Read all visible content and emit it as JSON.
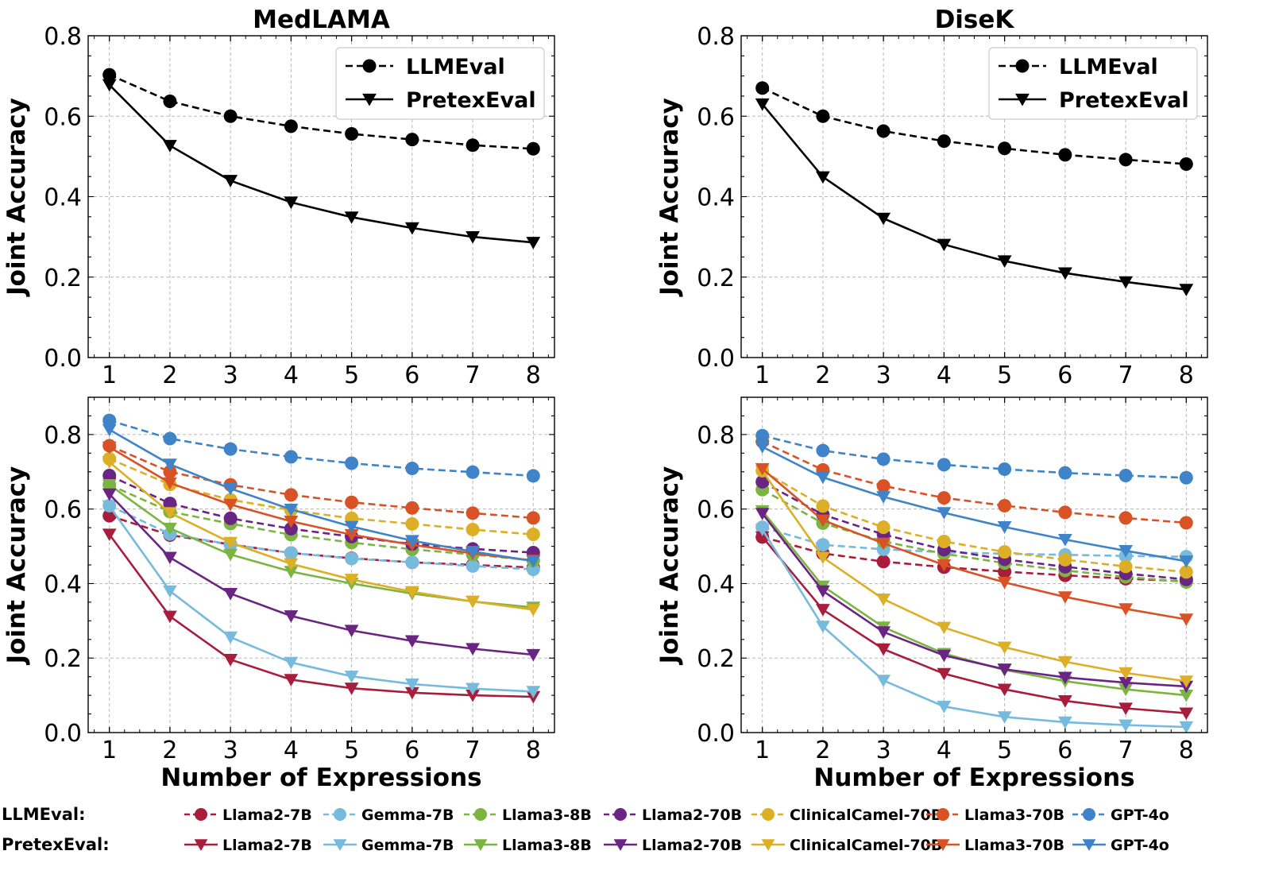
{
  "chart_data": [
    {
      "id": "medlama-top",
      "type": "line",
      "title": "MedLAMA",
      "xlabel": "",
      "ylabel": "Joint Accuracy",
      "x": [
        1,
        2,
        3,
        4,
        5,
        6,
        7,
        8
      ],
      "ylim": [
        0,
        0.8
      ],
      "yticks": [
        0.0,
        0.2,
        0.4,
        0.6,
        0.8
      ],
      "ytick_labels": [
        "0.0",
        "0.2",
        "0.4",
        "0.6",
        "0.8"
      ],
      "grid": true,
      "legend": {
        "position": "top-right",
        "entries": [
          "LLMEval",
          "PretexEval"
        ]
      },
      "series": [
        {
          "name": "LLMEval",
          "color": "#000000",
          "dashed": true,
          "marker": "circle",
          "values": [
            0.703,
            0.637,
            0.6,
            0.575,
            0.556,
            0.542,
            0.528,
            0.519
          ]
        },
        {
          "name": "PretexEval",
          "color": "#000000",
          "dashed": false,
          "marker": "triangle-down",
          "values": [
            0.678,
            0.527,
            0.44,
            0.386,
            0.349,
            0.322,
            0.3,
            0.286
          ]
        }
      ]
    },
    {
      "id": "disek-top",
      "type": "line",
      "title": "DiseK",
      "xlabel": "",
      "ylabel": "Joint Accuracy",
      "x": [
        1,
        2,
        3,
        4,
        5,
        6,
        7,
        8
      ],
      "ylim": [
        0,
        0.8
      ],
      "yticks": [
        0.0,
        0.2,
        0.4,
        0.6,
        0.8
      ],
      "ytick_labels": [
        "0.0",
        "0.2",
        "0.4",
        "0.6",
        "0.8"
      ],
      "grid": true,
      "legend": {
        "position": "top-right",
        "entries": [
          "LLMEval",
          "PretexEval"
        ]
      },
      "series": [
        {
          "name": "LLMEval",
          "color": "#000000",
          "dashed": true,
          "marker": "circle",
          "values": [
            0.67,
            0.6,
            0.563,
            0.538,
            0.52,
            0.504,
            0.492,
            0.481
          ]
        },
        {
          "name": "PretexEval",
          "color": "#000000",
          "dashed": false,
          "marker": "triangle-down",
          "values": [
            0.63,
            0.449,
            0.346,
            0.281,
            0.24,
            0.21,
            0.188,
            0.169
          ]
        }
      ]
    },
    {
      "id": "medlama-bottom",
      "type": "line",
      "title": "",
      "xlabel": "Number of Expressions",
      "ylabel": "Joint Accuracy",
      "x": [
        1,
        2,
        3,
        4,
        5,
        6,
        7,
        8
      ],
      "ylim": [
        0,
        0.9
      ],
      "yticks": [
        0.0,
        0.2,
        0.4,
        0.6,
        0.8
      ],
      "ytick_labels": [
        "0.0",
        "0.2",
        "0.4",
        "0.6",
        "0.8"
      ],
      "grid": true,
      "series": [
        {
          "name": "Llama2-7B",
          "group": "LLMEval",
          "color": "#A81C3C",
          "dashed": true,
          "marker": "circle",
          "values": [
            0.582,
            0.53,
            0.505,
            0.482,
            0.468,
            0.457,
            0.45,
            0.443
          ]
        },
        {
          "name": "Gemma-7B",
          "group": "LLMEval",
          "color": "#76BADD",
          "dashed": true,
          "marker": "circle",
          "values": [
            0.609,
            0.533,
            0.505,
            0.482,
            0.467,
            0.457,
            0.447,
            0.438
          ]
        },
        {
          "name": "Llama3-8B",
          "group": "LLMEval",
          "color": "#7CB442",
          "dashed": true,
          "marker": "circle",
          "values": [
            0.665,
            0.593,
            0.561,
            0.531,
            0.51,
            0.492,
            0.478,
            0.462
          ]
        },
        {
          "name": "Llama2-70B",
          "group": "LLMEval",
          "color": "#6A2483",
          "dashed": true,
          "marker": "circle",
          "values": [
            0.69,
            0.615,
            0.575,
            0.547,
            0.526,
            0.506,
            0.493,
            0.483
          ]
        },
        {
          "name": "ClinicalCamel-70B",
          "group": "LLMEval",
          "color": "#DDAF26",
          "dashed": true,
          "marker": "circle",
          "values": [
            0.735,
            0.666,
            0.625,
            0.597,
            0.575,
            0.56,
            0.545,
            0.532
          ]
        },
        {
          "name": "Llama3-70B",
          "group": "LLMEval",
          "color": "#D95226",
          "dashed": true,
          "marker": "circle",
          "values": [
            0.77,
            0.7,
            0.665,
            0.638,
            0.618,
            0.603,
            0.589,
            0.576
          ]
        },
        {
          "name": "GPT-4o",
          "group": "LLMEval",
          "color": "#3F84C8",
          "dashed": true,
          "marker": "circle",
          "values": [
            0.838,
            0.789,
            0.761,
            0.74,
            0.723,
            0.709,
            0.699,
            0.689
          ]
        },
        {
          "name": "Llama2-7B",
          "group": "PretexEval",
          "color": "#A81C3C",
          "dashed": false,
          "marker": "triangle-down",
          "values": [
            0.532,
            0.312,
            0.196,
            0.142,
            0.119,
            0.107,
            0.1,
            0.096
          ]
        },
        {
          "name": "Gemma-7B",
          "group": "PretexEval",
          "color": "#76BADD",
          "dashed": false,
          "marker": "triangle-down",
          "values": [
            0.608,
            0.38,
            0.256,
            0.188,
            0.151,
            0.13,
            0.118,
            0.11
          ]
        },
        {
          "name": "Llama3-8B",
          "group": "PretexEval",
          "color": "#7CB442",
          "dashed": false,
          "marker": "triangle-down",
          "values": [
            0.665,
            0.548,
            0.478,
            0.432,
            0.4,
            0.373,
            0.352,
            0.336
          ]
        },
        {
          "name": "Llama2-70B",
          "group": "PretexEval",
          "color": "#6A2483",
          "dashed": false,
          "marker": "triangle-down",
          "values": [
            0.64,
            0.47,
            0.373,
            0.313,
            0.274,
            0.246,
            0.225,
            0.209
          ]
        },
        {
          "name": "ClinicalCamel-70B",
          "group": "PretexEval",
          "color": "#DDAF26",
          "dashed": false,
          "marker": "triangle-down",
          "values": [
            0.726,
            0.59,
            0.51,
            0.453,
            0.411,
            0.378,
            0.352,
            0.33
          ]
        },
        {
          "name": "Llama3-70B",
          "group": "PretexEval",
          "color": "#D95226",
          "dashed": false,
          "marker": "triangle-down",
          "values": [
            0.766,
            0.67,
            0.612,
            0.567,
            0.531,
            0.504,
            0.481,
            0.462
          ]
        },
        {
          "name": "GPT-4o",
          "group": "PretexEval",
          "color": "#3F84C8",
          "dashed": false,
          "marker": "triangle-down",
          "values": [
            0.813,
            0.72,
            0.655,
            0.599,
            0.553,
            0.515,
            0.486,
            0.46
          ]
        }
      ]
    },
    {
      "id": "disek-bottom",
      "type": "line",
      "title": "",
      "xlabel": "Number of Expressions",
      "ylabel": "Joint Accuracy",
      "x": [
        1,
        2,
        3,
        4,
        5,
        6,
        7,
        8
      ],
      "ylim": [
        0,
        0.9
      ],
      "yticks": [
        0.0,
        0.2,
        0.4,
        0.6,
        0.8
      ],
      "ytick_labels": [
        "0.0",
        "0.2",
        "0.4",
        "0.6",
        "0.8"
      ],
      "grid": true,
      "series": [
        {
          "name": "Llama2-7B",
          "group": "LLMEval",
          "color": "#A81C3C",
          "dashed": true,
          "marker": "circle",
          "values": [
            0.525,
            0.481,
            0.459,
            0.444,
            0.432,
            0.422,
            0.413,
            0.406
          ]
        },
        {
          "name": "Gemma-7B",
          "group": "LLMEval",
          "color": "#76BADD",
          "dashed": true,
          "marker": "circle",
          "values": [
            0.551,
            0.504,
            0.492,
            0.484,
            0.48,
            0.477,
            0.474,
            0.472
          ]
        },
        {
          "name": "Llama3-8B",
          "group": "LLMEval",
          "color": "#7CB442",
          "dashed": true,
          "marker": "circle",
          "values": [
            0.652,
            0.562,
            0.513,
            0.48,
            0.455,
            0.435,
            0.418,
            0.404
          ]
        },
        {
          "name": "Llama2-70B",
          "group": "LLMEval",
          "color": "#6A2483",
          "dashed": true,
          "marker": "circle",
          "values": [
            0.673,
            0.585,
            0.532,
            0.491,
            0.465,
            0.445,
            0.427,
            0.411
          ]
        },
        {
          "name": "ClinicalCamel-70B",
          "group": "LLMEval",
          "color": "#DDAF26",
          "dashed": true,
          "marker": "circle",
          "values": [
            0.703,
            0.608,
            0.551,
            0.513,
            0.485,
            0.464,
            0.446,
            0.431
          ]
        },
        {
          "name": "Llama3-70B",
          "group": "LLMEval",
          "color": "#D95226",
          "dashed": true,
          "marker": "circle",
          "values": [
            0.781,
            0.705,
            0.662,
            0.63,
            0.609,
            0.591,
            0.576,
            0.563
          ]
        },
        {
          "name": "GPT-4o",
          "group": "LLMEval",
          "color": "#3F84C8",
          "dashed": true,
          "marker": "circle",
          "values": [
            0.797,
            0.757,
            0.734,
            0.719,
            0.707,
            0.697,
            0.69,
            0.684
          ]
        },
        {
          "name": "Llama2-7B",
          "group": "PretexEval",
          "color": "#A81C3C",
          "dashed": false,
          "marker": "triangle-down",
          "values": [
            0.525,
            0.33,
            0.224,
            0.158,
            0.116,
            0.085,
            0.065,
            0.052
          ]
        },
        {
          "name": "Gemma-7B",
          "group": "PretexEval",
          "color": "#76BADD",
          "dashed": false,
          "marker": "triangle-down",
          "values": [
            0.545,
            0.285,
            0.14,
            0.07,
            0.042,
            0.028,
            0.02,
            0.015
          ]
        },
        {
          "name": "Llama3-8B",
          "group": "PretexEval",
          "color": "#7CB442",
          "dashed": false,
          "marker": "triangle-down",
          "values": [
            0.595,
            0.393,
            0.283,
            0.212,
            0.168,
            0.138,
            0.116,
            0.1
          ]
        },
        {
          "name": "Llama2-70B",
          "group": "PretexEval",
          "color": "#6A2483",
          "dashed": false,
          "marker": "triangle-down",
          "values": [
            0.588,
            0.38,
            0.27,
            0.207,
            0.17,
            0.148,
            0.134,
            0.124
          ]
        },
        {
          "name": "ClinicalCamel-70B",
          "group": "PretexEval",
          "color": "#DDAF26",
          "dashed": false,
          "marker": "triangle-down",
          "values": [
            0.702,
            0.47,
            0.358,
            0.282,
            0.229,
            0.19,
            0.16,
            0.138
          ]
        },
        {
          "name": "Llama3-70B",
          "group": "PretexEval",
          "color": "#D95226",
          "dashed": false,
          "marker": "triangle-down",
          "values": [
            0.708,
            0.57,
            0.508,
            0.45,
            0.403,
            0.364,
            0.332,
            0.304
          ]
        },
        {
          "name": "GPT-4o",
          "group": "PretexEval",
          "color": "#3F84C8",
          "dashed": false,
          "marker": "triangle-down",
          "values": [
            0.767,
            0.685,
            0.633,
            0.59,
            0.552,
            0.518,
            0.488,
            0.46
          ]
        }
      ]
    }
  ],
  "bottom_legend": {
    "rows": [
      {
        "label": "LLMEval:",
        "dashed": true,
        "marker": "circle"
      },
      {
        "label": "PretexEval:",
        "dashed": false,
        "marker": "triangle-down"
      }
    ],
    "models": [
      {
        "name": "Llama2-7B",
        "color": "#A81C3C"
      },
      {
        "name": "Gemma-7B",
        "color": "#76BADD"
      },
      {
        "name": "Llama3-8B",
        "color": "#7CB442"
      },
      {
        "name": "Llama2-70B",
        "color": "#6A2483"
      },
      {
        "name": "ClinicalCamel-70B",
        "color": "#DDAF26"
      },
      {
        "name": "Llama3-70B",
        "color": "#D95226"
      },
      {
        "name": "GPT-4o",
        "color": "#3F84C8"
      }
    ]
  }
}
